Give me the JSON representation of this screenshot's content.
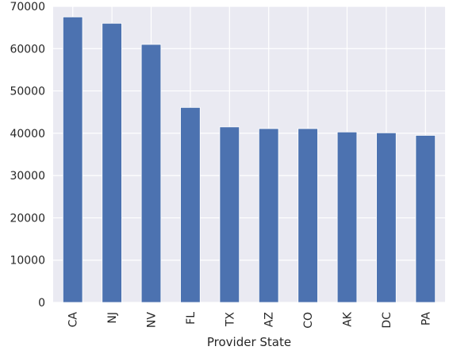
{
  "chart_data": {
    "type": "bar",
    "title": "",
    "xlabel": "Provider State",
    "ylabel": "",
    "categories": [
      "CA",
      "NJ",
      "NV",
      "FL",
      "TX",
      "AZ",
      "CO",
      "AK",
      "DC",
      "PA"
    ],
    "values": [
      67500,
      66000,
      61000,
      46100,
      41500,
      41100,
      41100,
      40300,
      40100,
      39500
    ],
    "ylim": [
      0,
      70000
    ],
    "yticks": [
      0,
      10000,
      20000,
      30000,
      40000,
      50000,
      60000,
      70000
    ],
    "ytick_labels": [
      "0",
      "10000",
      "20000",
      "30000",
      "40000",
      "50000",
      "60000",
      "70000"
    ],
    "grid": true,
    "colors": {
      "bar": "#4c72b0",
      "background": "#eaeaf2",
      "grid": "#ffffff",
      "text": "#262626"
    }
  }
}
